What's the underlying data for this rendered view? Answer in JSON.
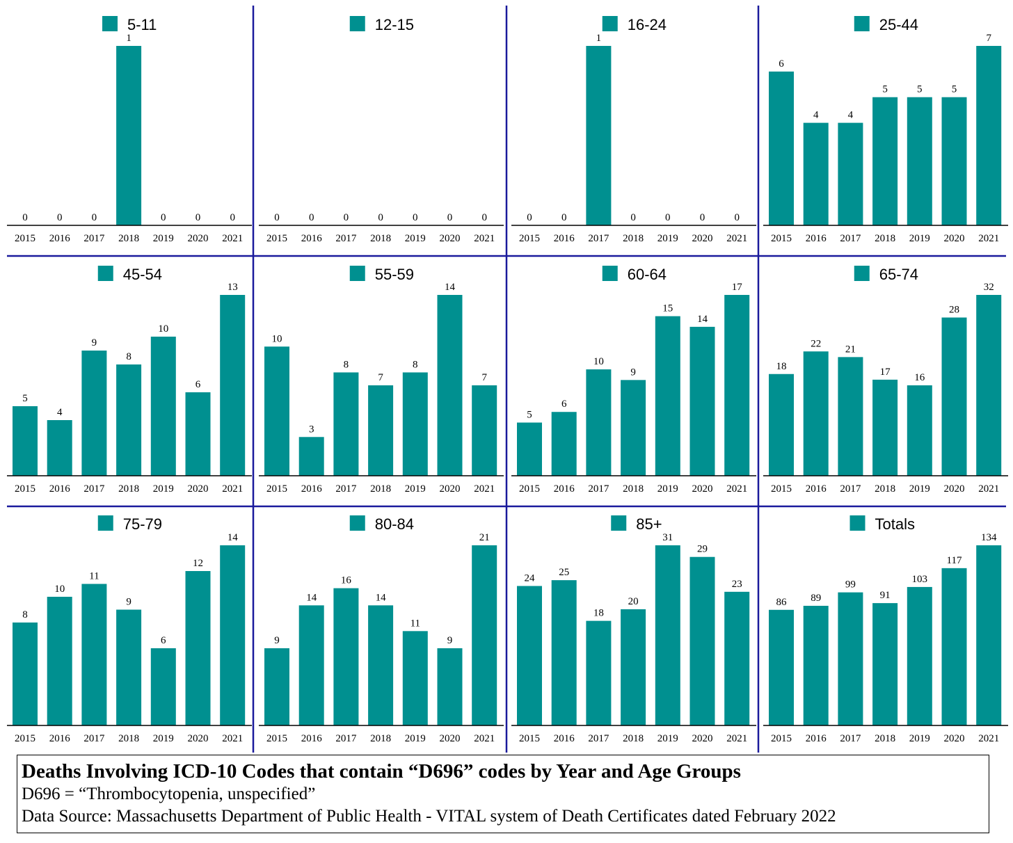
{
  "colors": {
    "bar": "#009090",
    "divider": "#1a1a9c",
    "axis": "#000000",
    "text": "#000000"
  },
  "chart_data": [
    {
      "type": "bar",
      "legend": "5-11",
      "categories": [
        "2015",
        "2016",
        "2017",
        "2018",
        "2019",
        "2020",
        "2021"
      ],
      "values": [
        0,
        0,
        0,
        1,
        0,
        0,
        0
      ]
    },
    {
      "type": "bar",
      "legend": "12-15",
      "categories": [
        "2015",
        "2016",
        "2017",
        "2018",
        "2019",
        "2020",
        "2021"
      ],
      "values": [
        0,
        0,
        0,
        0,
        0,
        0,
        0
      ]
    },
    {
      "type": "bar",
      "legend": "16-24",
      "categories": [
        "2015",
        "2016",
        "2017",
        "2018",
        "2019",
        "2020",
        "2021"
      ],
      "values": [
        0,
        0,
        1,
        0,
        0,
        0,
        0
      ]
    },
    {
      "type": "bar",
      "legend": "25-44",
      "categories": [
        "2015",
        "2016",
        "2017",
        "2018",
        "2019",
        "2020",
        "2021"
      ],
      "values": [
        6,
        4,
        4,
        5,
        5,
        5,
        7
      ]
    },
    {
      "type": "bar",
      "legend": "45-54",
      "categories": [
        "2015",
        "2016",
        "2017",
        "2018",
        "2019",
        "2020",
        "2021"
      ],
      "values": [
        5,
        4,
        9,
        8,
        10,
        6,
        13
      ]
    },
    {
      "type": "bar",
      "legend": "55-59",
      "categories": [
        "2015",
        "2016",
        "2017",
        "2018",
        "2019",
        "2020",
        "2021"
      ],
      "values": [
        10,
        3,
        8,
        7,
        8,
        14,
        7
      ]
    },
    {
      "type": "bar",
      "legend": "60-64",
      "categories": [
        "2015",
        "2016",
        "2017",
        "2018",
        "2019",
        "2020",
        "2021"
      ],
      "values": [
        5,
        6,
        10,
        9,
        15,
        14,
        17
      ]
    },
    {
      "type": "bar",
      "legend": "65-74",
      "categories": [
        "2015",
        "2016",
        "2017",
        "2018",
        "2019",
        "2020",
        "2021"
      ],
      "values": [
        18,
        22,
        21,
        17,
        16,
        28,
        32
      ]
    },
    {
      "type": "bar",
      "legend": "75-79",
      "categories": [
        "2015",
        "2016",
        "2017",
        "2018",
        "2019",
        "2020",
        "2021"
      ],
      "values": [
        8,
        10,
        11,
        9,
        6,
        12,
        14
      ]
    },
    {
      "type": "bar",
      "legend": "80-84",
      "categories": [
        "2015",
        "2016",
        "2017",
        "2018",
        "2019",
        "2020",
        "2021"
      ],
      "values": [
        9,
        14,
        16,
        14,
        11,
        9,
        21
      ]
    },
    {
      "type": "bar",
      "legend": "85+",
      "categories": [
        "2015",
        "2016",
        "2017",
        "2018",
        "2019",
        "2020",
        "2021"
      ],
      "values": [
        24,
        25,
        18,
        20,
        31,
        29,
        23
      ]
    },
    {
      "type": "bar",
      "legend": "Totals",
      "categories": [
        "2015",
        "2016",
        "2017",
        "2018",
        "2019",
        "2020",
        "2021"
      ],
      "values": [
        86,
        89,
        99,
        91,
        103,
        117,
        134
      ]
    }
  ],
  "footer": {
    "title": "Deaths Involving ICD-10 Codes that contain “D696” codes by Year and Age Groups",
    "line1": "D696 = “Thrombocytopenia, unspecified”",
    "line2": "Data Source:  Massachusetts Department of Public Health - VITAL system of Death Certificates dated February 2022"
  }
}
